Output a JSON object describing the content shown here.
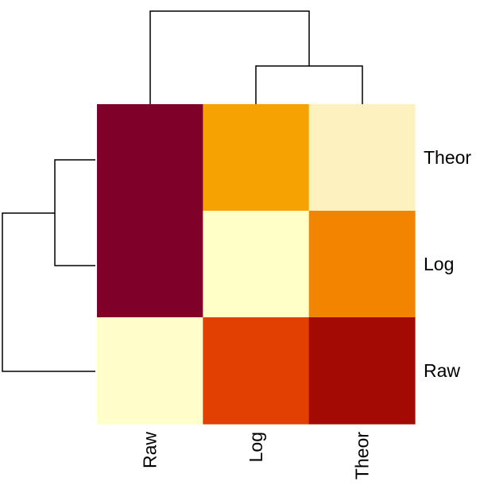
{
  "chart_data": {
    "type": "heatmap",
    "title": "",
    "xlabel": "",
    "ylabel": "",
    "columns": [
      "Raw",
      "Log",
      "Theor"
    ],
    "rows": [
      "Theor",
      "Log",
      "Raw"
    ],
    "values": [
      [
        1.0,
        0.55,
        0.1
      ],
      [
        1.0,
        0.05,
        0.45
      ],
      [
        0.05,
        0.65,
        0.9
      ]
    ],
    "cell_colors": [
      [
        "#7f0029",
        "#f6a200",
        "#fdf2bf"
      ],
      [
        "#7f0029",
        "#ffffc8",
        "#f38400"
      ],
      [
        "#ffffcb",
        "#e04000",
        "#a40a04"
      ]
    ],
    "column_dendrogram": "Raw | (Log, Theor)",
    "row_dendrogram": "(Theor, Log) | Raw"
  }
}
